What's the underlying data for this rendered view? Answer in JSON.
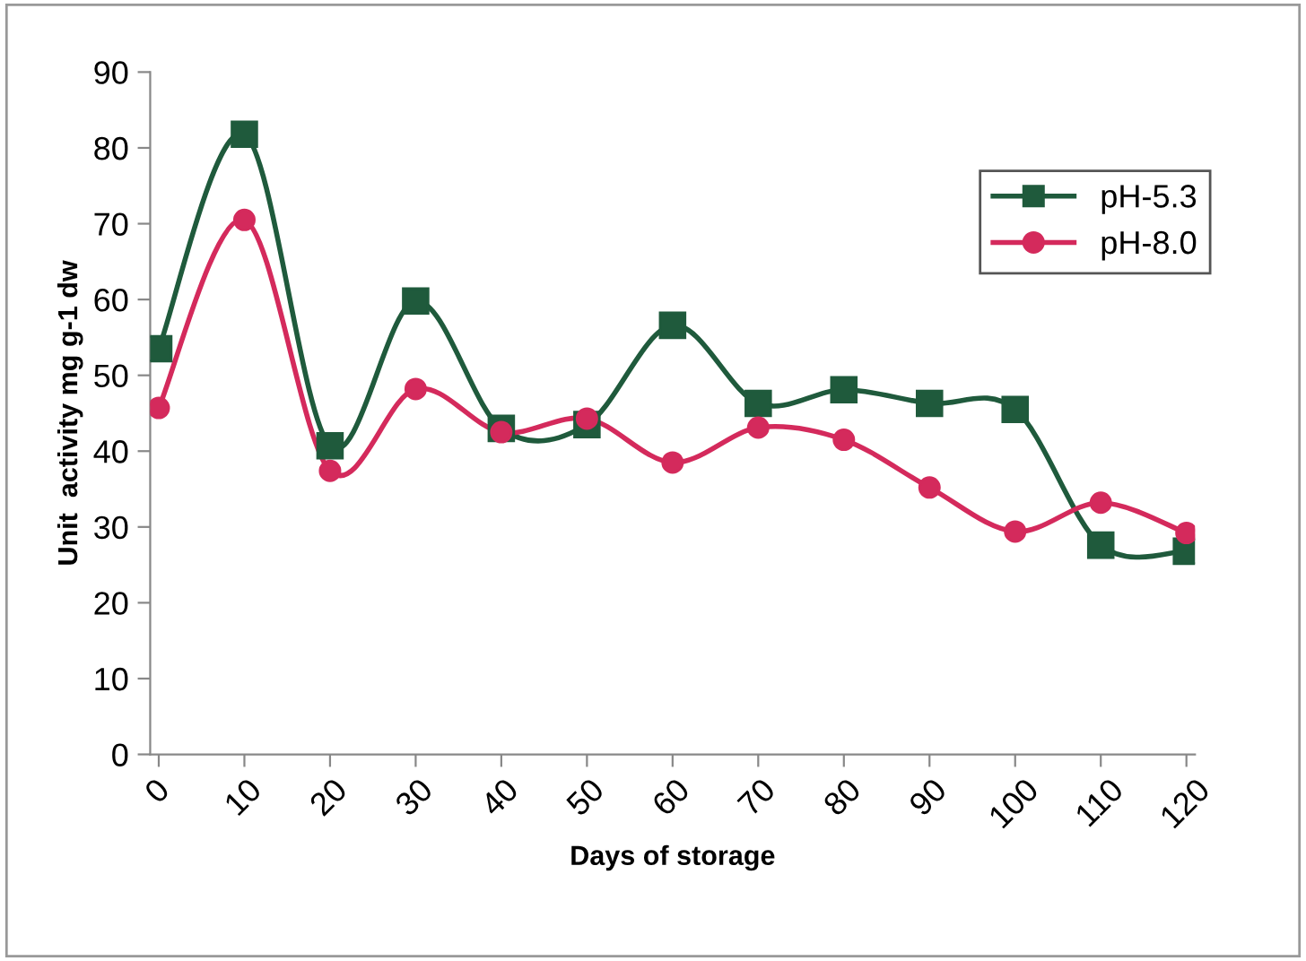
{
  "chart_data": {
    "type": "line",
    "xlabel": "Days of storage",
    "ylabel": "Unit  activity mg g-1 dw",
    "categories": [
      "0",
      "10",
      "20",
      "30",
      "40",
      "50",
      "60",
      "70",
      "80",
      "90",
      "100",
      "110",
      "120"
    ],
    "series": [
      {
        "name": "pH-5.3",
        "color": "#1f5a3c",
        "marker": "square",
        "values": [
          53.5,
          81.8,
          40.7,
          59.8,
          43,
          43.5,
          56.6,
          46.3,
          48.1,
          46.3,
          45.5,
          27.6,
          26.8
        ]
      },
      {
        "name": "pH-8.0",
        "color": "#d42a5c",
        "marker": "circle",
        "values": [
          45.7,
          70.5,
          37.4,
          48.2,
          42.5,
          44.3,
          38.5,
          43.1,
          41.5,
          35.2,
          29.4,
          33.2,
          29.2
        ]
      }
    ],
    "ylim": [
      0,
      90
    ],
    "yticks": [
      0,
      10,
      20,
      30,
      40,
      50,
      60,
      70,
      80,
      90
    ],
    "grid": false,
    "legend": "right",
    "line_style": "solid"
  }
}
